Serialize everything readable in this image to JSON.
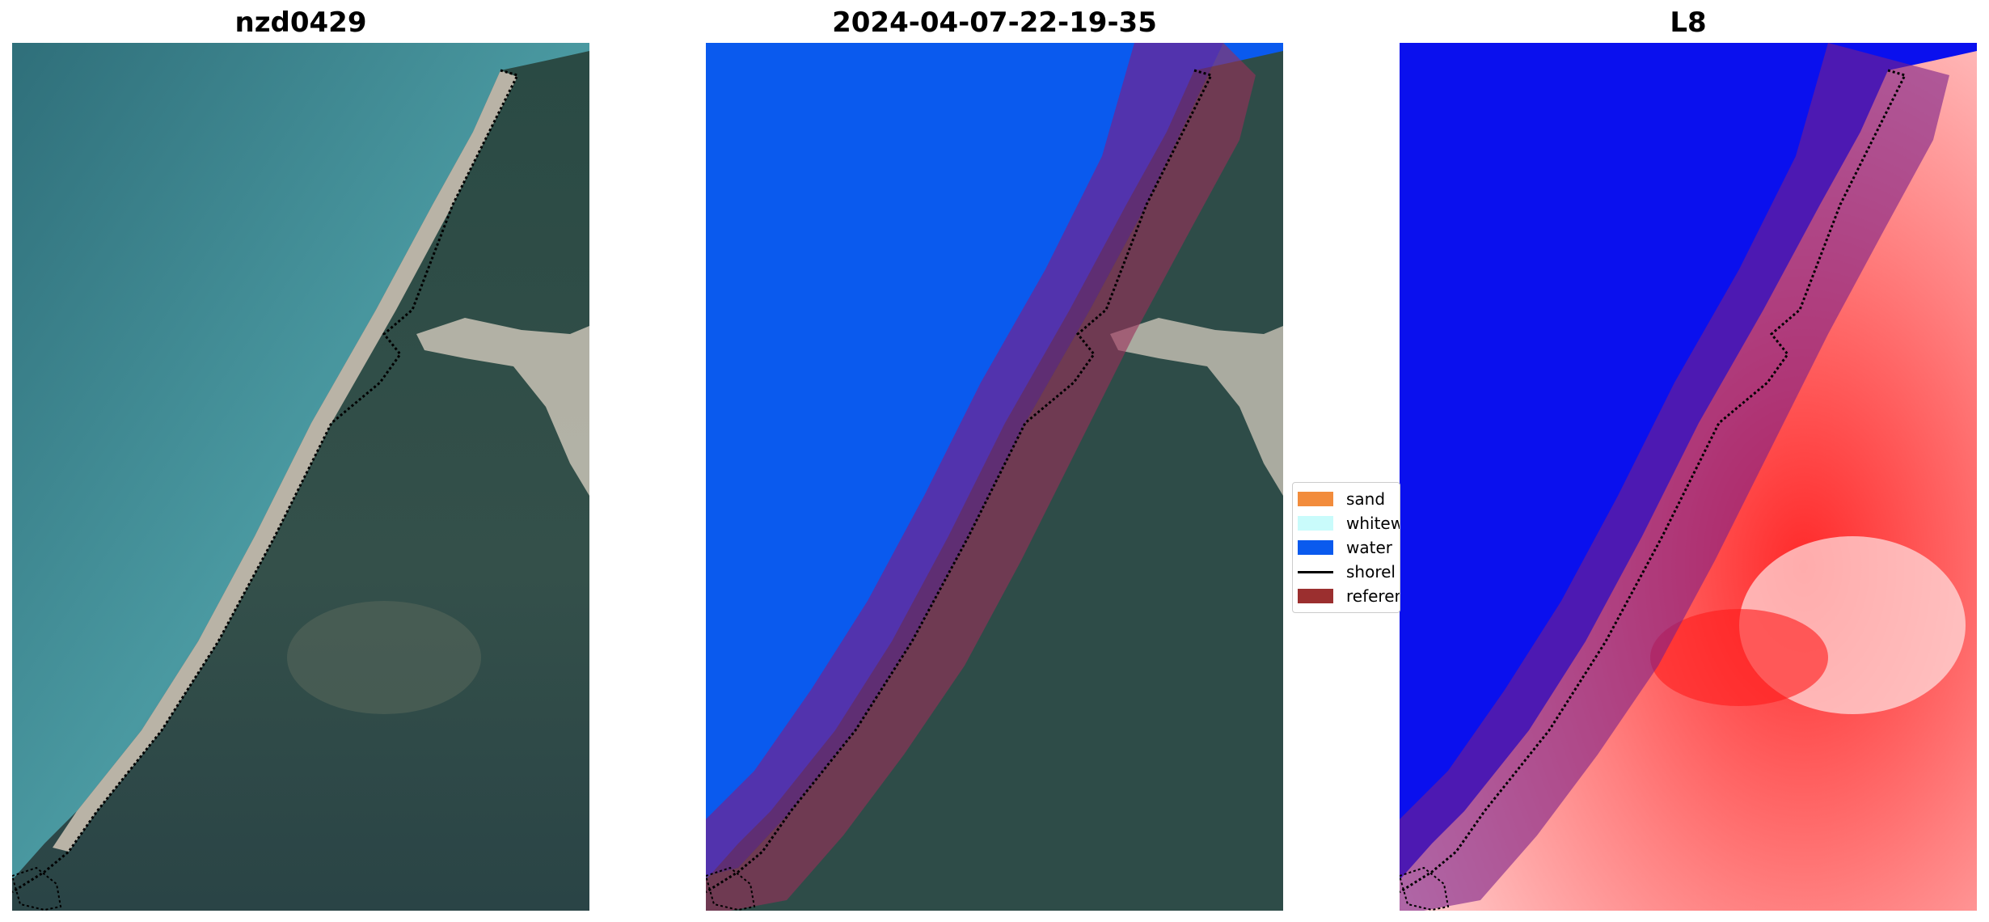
{
  "panels": [
    {
      "title": "nzd0429"
    },
    {
      "title": "2024-04-07-22-19-35"
    },
    {
      "title": "L8"
    }
  ],
  "legend": {
    "items": [
      {
        "label": "sand",
        "color": "#f28c3c",
        "kind": "patch"
      },
      {
        "label": "whitew",
        "color": "#c9fbfb",
        "kind": "patch"
      },
      {
        "label": "water",
        "color": "#0a5aee",
        "kind": "patch"
      },
      {
        "label": "shorel",
        "color": "#000000",
        "kind": "line"
      },
      {
        "label": "referen",
        "color": "#9b2f2f",
        "kind": "patch"
      }
    ]
  },
  "colors": {
    "ocean": "#3d8a96",
    "land": "#2c4a47",
    "sand": "#b9b3a6",
    "water_class": "#0a5aee",
    "reference_buffer": "#7a1f8a",
    "index_water": "#0a10ee",
    "index_land": "#ff3030",
    "shoreline": "#000000"
  }
}
